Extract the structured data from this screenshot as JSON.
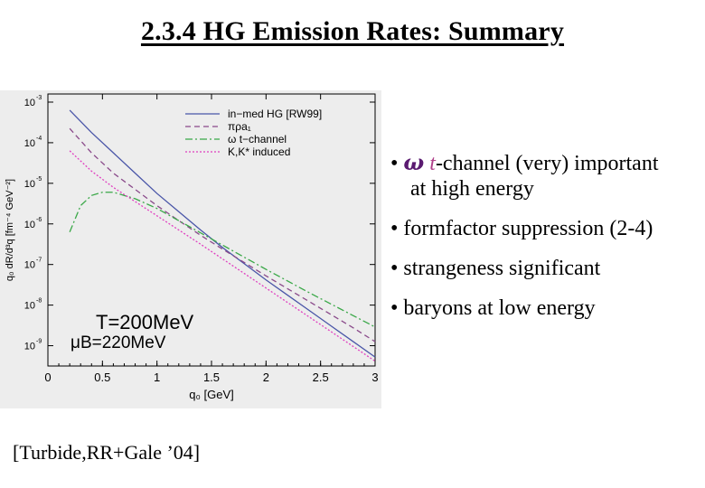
{
  "title": "2.3.4  HG Emission Rates: Summary",
  "bullets": [
    {
      "lead": "• ",
      "symbol": "ω",
      "ital": "t",
      "text": "-channel (very) important",
      "cont": "at high energy"
    },
    {
      "text": "• formfactor suppression (2-4)"
    },
    {
      "text": "• strangeness significant"
    },
    {
      "text": "• baryons at low energy"
    }
  ],
  "citation": "[Turbide,RR+Gale ’04]",
  "chart_data": {
    "type": "line",
    "xlabel": "q₀ [GeV]",
    "ylabel": "q₀ dR/d³q  [fm⁻⁴ GeV⁻²]",
    "xlim": [
      0,
      3
    ],
    "ylim_log10": [
      -9.5,
      -2.8
    ],
    "x_ticks": [
      "0",
      "0.5",
      "1",
      "1.5",
      "2",
      "2.5",
      "3"
    ],
    "y_ticks": [
      {
        "base": "10",
        "exp": "-3",
        "log": -3
      },
      {
        "base": "10",
        "exp": "-4",
        "log": -4
      },
      {
        "base": "10",
        "exp": "-5",
        "log": -5
      },
      {
        "base": "10",
        "exp": "-6",
        "log": -6
      },
      {
        "base": "10",
        "exp": "-7",
        "log": -7
      },
      {
        "base": "10",
        "exp": "-8",
        "log": -8
      },
      {
        "base": "10",
        "exp": "-9",
        "log": -9
      }
    ],
    "annotations": [
      {
        "text": "T=200MeV"
      },
      {
        "text": "μB=220MeV"
      }
    ],
    "series": [
      {
        "name": "in−med HG [RW99]",
        "color": "#4a56a8",
        "dash": "",
        "x": [
          0.2,
          0.4,
          0.6,
          0.8,
          1.0,
          1.2,
          1.4,
          1.6,
          1.8,
          2.0,
          2.2,
          2.4,
          2.6,
          2.8,
          3.0
        ],
        "logy": [
          -3.2,
          -3.75,
          -4.25,
          -4.75,
          -5.25,
          -5.7,
          -6.15,
          -6.58,
          -6.98,
          -7.38,
          -7.76,
          -8.14,
          -8.52,
          -8.9,
          -9.28
        ]
      },
      {
        "name": "πρa₁",
        "color": "#8a4a8a",
        "dash": "6,4",
        "x": [
          0.2,
          0.4,
          0.6,
          0.8,
          1.0,
          1.2,
          1.4,
          1.6,
          1.8,
          2.0,
          2.2,
          2.4,
          2.6,
          2.8,
          3.0
        ],
        "logy": [
          -3.65,
          -4.25,
          -4.75,
          -5.15,
          -5.55,
          -5.92,
          -6.28,
          -6.62,
          -6.95,
          -7.28,
          -7.6,
          -7.92,
          -8.24,
          -8.56,
          -8.9
        ]
      },
      {
        "name": "ω t−channel",
        "color": "#3aa848",
        "dash": "8,3,2,3",
        "x": [
          0.2,
          0.3,
          0.4,
          0.5,
          0.6,
          0.8,
          1.0,
          1.2,
          1.4,
          1.6,
          1.8,
          2.0,
          2.2,
          2.4,
          2.6,
          2.8,
          3.0
        ],
        "logy": [
          -6.2,
          -5.55,
          -5.3,
          -5.22,
          -5.22,
          -5.38,
          -5.62,
          -5.92,
          -6.22,
          -6.52,
          -6.82,
          -7.12,
          -7.41,
          -7.7,
          -7.98,
          -8.26,
          -8.54
        ]
      },
      {
        "name": "K,K* induced",
        "color": "#e040c0",
        "dash": "2,2",
        "x": [
          0.2,
          0.4,
          0.6,
          0.8,
          1.0,
          1.2,
          1.4,
          1.6,
          1.8,
          2.0,
          2.2,
          2.4,
          2.6,
          2.8,
          3.0
        ],
        "logy": [
          -4.2,
          -4.7,
          -5.1,
          -5.45,
          -5.8,
          -6.15,
          -6.5,
          -6.86,
          -7.22,
          -7.58,
          -7.94,
          -8.3,
          -8.66,
          -9.02,
          -9.38
        ]
      }
    ]
  }
}
